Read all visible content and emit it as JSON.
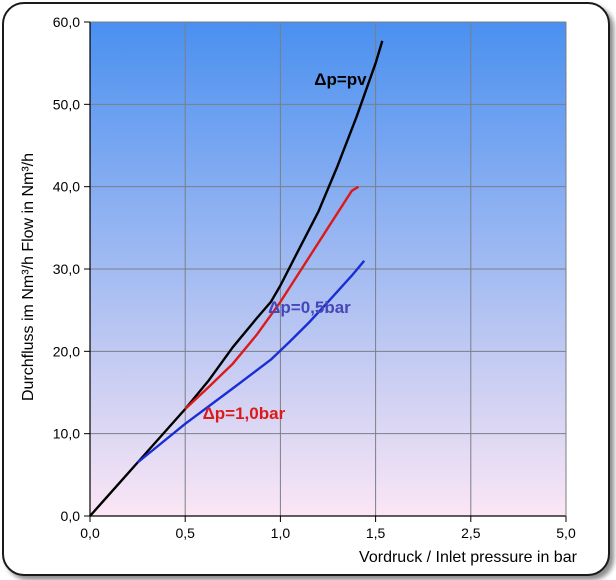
{
  "chart_data": {
    "type": "line",
    "xlabel": "Vordruck / Inlet pressure in bar",
    "ylabel": "Durchfluss im Nm³/h  Flow in Nm³/h",
    "x_ticks": [
      "0,0",
      "0,5",
      "1,0",
      "1,5",
      "2,5",
      "5,0"
    ],
    "y_ticks": [
      "0,0",
      "10,0",
      "20,0",
      "30,0",
      "40,0",
      "50,0",
      "60,0"
    ],
    "ylim": [
      0,
      60
    ],
    "x_tick_count": 6,
    "grid": true,
    "background": {
      "top": "#4a90f0",
      "bottom": "#fbe6f4"
    },
    "series": [
      {
        "name": "Δp=pv",
        "color": "#000000",
        "points": [
          [
            0,
            0
          ],
          [
            0.5,
            6.5
          ],
          [
            1,
            13
          ],
          [
            1.25,
            16.5
          ],
          [
            1.5,
            20.5
          ],
          [
            1.75,
            24
          ],
          [
            1.9,
            26
          ],
          [
            2.0,
            28
          ],
          [
            2.2,
            32.5
          ],
          [
            2.4,
            37
          ],
          [
            2.6,
            42.5
          ],
          [
            2.8,
            48.5
          ],
          [
            3.0,
            55
          ],
          [
            3.07,
            57.7
          ]
        ]
      },
      {
        "name": "Δp=1,0bar",
        "color": "#dd1a1a",
        "points": [
          [
            1,
            13
          ],
          [
            1.25,
            15.7
          ],
          [
            1.5,
            18.5
          ],
          [
            1.75,
            22
          ],
          [
            2.0,
            26
          ],
          [
            2.25,
            30.5
          ],
          [
            2.5,
            35
          ],
          [
            2.75,
            39.5
          ],
          [
            2.82,
            40
          ]
        ]
      },
      {
        "name": "Δp=0,5bar",
        "color": "#1a2ed6",
        "points": [
          [
            0.5,
            6.5
          ],
          [
            1,
            11.2
          ],
          [
            1.5,
            15.5
          ],
          [
            1.9,
            19
          ],
          [
            2.1,
            21.2
          ],
          [
            2.3,
            23.5
          ],
          [
            2.5,
            26
          ],
          [
            2.75,
            29.2
          ],
          [
            2.88,
            31
          ]
        ]
      }
    ],
    "labels": [
      {
        "series": 0,
        "text": "Δp=pv",
        "color": "#000000"
      },
      {
        "series": 1,
        "text": "Δp=1,0bar",
        "color": "#dd1a1a"
      },
      {
        "series": 2,
        "text": "Δp=0,5bar",
        "color": "#4646b8"
      }
    ]
  }
}
